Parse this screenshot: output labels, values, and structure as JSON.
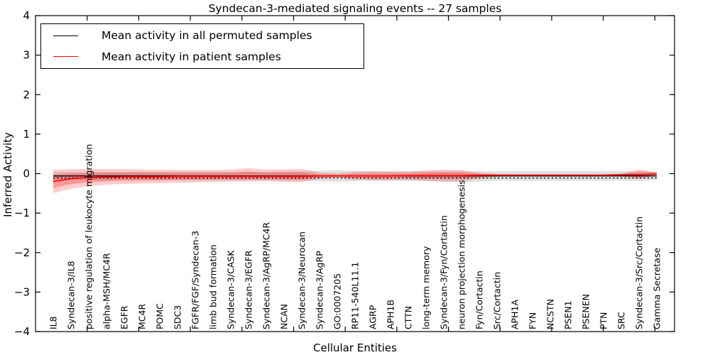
{
  "title": "Syndecan-3-mediated signaling events -- 27 samples",
  "axes": {
    "y_label": "Inferred Activity",
    "x_label": "Cellular Entities",
    "y_tick_labels": [
      "4",
      "3",
      "2",
      "1",
      "0",
      "−1",
      "−2",
      "−3",
      "−4"
    ],
    "y_tick_values": [
      4,
      3,
      2,
      1,
      0,
      -1,
      -2,
      -3,
      -4
    ],
    "y_range": [
      -4,
      4
    ]
  },
  "legend": {
    "items": [
      {
        "label": "Mean activity in all permuted samples",
        "color": "#000000"
      },
      {
        "label": "Mean activity in patient samples",
        "color": "#ff0000"
      }
    ]
  },
  "colors": {
    "patient_line": "#ff0000",
    "permuted_line": "#000000",
    "patient_band": "#ff0000",
    "permuted_band": "#aaaaaa",
    "axis": "#000000"
  },
  "chart_data": {
    "type": "line",
    "title": "Syndecan-3-mediated signaling events -- 27 samples",
    "xlabel": "Cellular Entities",
    "ylabel": "Inferred Activity",
    "ylim": [
      -4,
      4
    ],
    "grid": false,
    "legend_position": "upper left",
    "categories": [
      "IL8",
      "Syndecan-3/IL8",
      "positive regulation of leukocyte migration",
      "alpha-MSH/MC4R",
      "EGFR",
      "MC4R",
      "POMC",
      "SDC3",
      "FGFR/FGF/Syndecan-3",
      "limb bud formation",
      "Syndecan-3/CASK",
      "Syndecan-3/EGFR",
      "Syndecan-3/AgRP/MC4R",
      "NCAN",
      "Syndecan-3/Neurocan",
      "Syndecan-3/AgRP",
      "GO:0007205",
      "RP11-540L11.1",
      "AGRP",
      "APH1B",
      "CTTN",
      "long-term memory",
      "Syndecan-3/Fyn/Cortactin",
      "neuron projection morphogenesis",
      "Fyn/Cortactin",
      "Src/Cortactin",
      "APH1A",
      "FYN",
      "NCSTN",
      "PSEN1",
      "PSENEN",
      "PTN",
      "SRC",
      "Syndecan-3/Src/Cortactin",
      "Gamma Secretase"
    ],
    "series": [
      {
        "name": "Mean activity in all permuted samples",
        "color": "#000000",
        "values": [
          -0.06,
          -0.06,
          -0.06,
          -0.06,
          -0.06,
          -0.06,
          -0.06,
          -0.06,
          -0.06,
          -0.06,
          -0.06,
          -0.06,
          -0.06,
          -0.06,
          -0.06,
          -0.06,
          -0.06,
          -0.06,
          -0.06,
          -0.06,
          -0.06,
          -0.06,
          -0.06,
          -0.06,
          -0.06,
          -0.06,
          -0.06,
          -0.06,
          -0.06,
          -0.06,
          -0.06,
          -0.06,
          -0.06,
          -0.06,
          -0.06
        ]
      },
      {
        "name": "Mean activity in patient samples",
        "color": "#ff0000",
        "values": [
          -0.2,
          -0.13,
          -0.1,
          -0.09,
          -0.08,
          -0.08,
          -0.08,
          -0.07,
          -0.07,
          -0.07,
          -0.07,
          -0.07,
          -0.07,
          -0.07,
          -0.07,
          -0.06,
          -0.06,
          -0.06,
          -0.06,
          -0.06,
          -0.05,
          -0.05,
          -0.05,
          -0.05,
          -0.04,
          -0.04,
          -0.04,
          -0.04,
          -0.04,
          -0.04,
          -0.04,
          -0.04,
          -0.03,
          -0.03,
          -0.01
        ]
      }
    ],
    "bands": [
      {
        "name": "permuted samples +/- std",
        "color": "#aaaaaa",
        "upper": [
          0.04,
          0.04,
          0.04,
          0.04,
          0.04,
          0.05,
          0.05,
          0.05,
          0.05,
          0.05,
          0.05,
          0.05,
          0.05,
          0.06,
          0.06,
          0.07,
          0.08,
          0.07,
          0.06,
          0.06,
          0.06,
          0.06,
          0.06,
          0.06,
          0.06,
          0.06,
          0.06,
          0.06,
          0.06,
          0.06,
          0.06,
          0.06,
          0.06,
          0.06,
          0.04
        ],
        "lower": [
          -0.16,
          -0.16,
          -0.16,
          -0.16,
          -0.16,
          -0.16,
          -0.17,
          -0.17,
          -0.17,
          -0.17,
          -0.17,
          -0.17,
          -0.17,
          -0.18,
          -0.18,
          -0.19,
          -0.2,
          -0.19,
          -0.18,
          -0.18,
          -0.18,
          -0.19,
          -0.21,
          -0.22,
          -0.2,
          -0.18,
          -0.18,
          -0.18,
          -0.18,
          -0.18,
          -0.18,
          -0.18,
          -0.18,
          -0.19,
          -0.16
        ]
      },
      {
        "name": "patient samples +/- std",
        "color": "#ff0000",
        "upper": [
          0.1,
          0.11,
          0.11,
          0.11,
          0.11,
          0.1,
          0.1,
          0.09,
          0.09,
          0.09,
          0.1,
          0.14,
          0.1,
          0.11,
          0.12,
          0.02,
          0.0,
          0.04,
          0.06,
          0.05,
          0.05,
          0.08,
          0.1,
          0.09,
          0.02,
          -0.01,
          -0.02,
          -0.02,
          -0.02,
          -0.02,
          -0.02,
          -0.02,
          0.0,
          0.1,
          0.04
        ],
        "lower": [
          -0.5,
          -0.38,
          -0.32,
          -0.28,
          -0.26,
          -0.25,
          -0.24,
          -0.23,
          -0.22,
          -0.21,
          -0.2,
          -0.2,
          -0.19,
          -0.21,
          -0.22,
          -0.13,
          -0.1,
          -0.15,
          -0.17,
          -0.17,
          -0.16,
          -0.18,
          -0.2,
          -0.19,
          -0.12,
          -0.08,
          -0.06,
          -0.06,
          -0.06,
          -0.06,
          -0.06,
          -0.06,
          -0.07,
          -0.14,
          -0.04
        ]
      }
    ],
    "reference_line": -0.11
  }
}
